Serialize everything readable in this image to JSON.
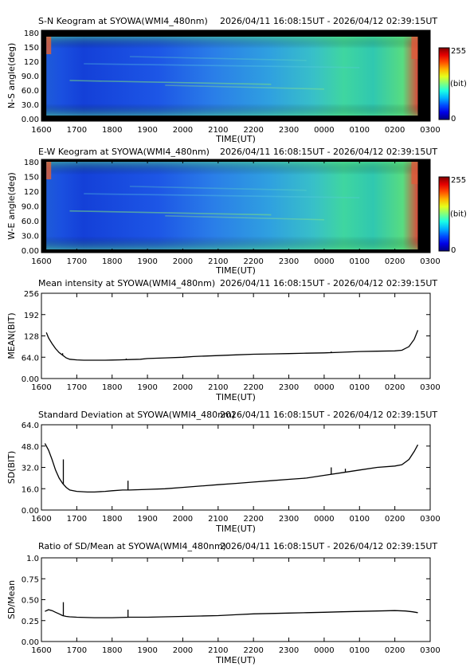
{
  "chart_data": [
    {
      "type": "heatmap",
      "title": "S-N Keogram at SYOWA(WMI4_480nm)",
      "time_range": "2026/04/11 16:08:15UT - 2026/04/12 02:39:15UT",
      "xlabel": "TIME(UT)",
      "ylabel": "N-S angle(deg)",
      "xlim": [
        16.0,
        27.0
      ],
      "ylim": [
        -5,
        185
      ],
      "x_ticks": [
        "1600",
        "1700",
        "1800",
        "1900",
        "2000",
        "2100",
        "2200",
        "2300",
        "0000",
        "0100",
        "0200",
        "0300"
      ],
      "y_ticks": [
        0.0,
        30.0,
        60.0,
        90.0,
        120,
        150,
        180
      ],
      "y_tick_labels": [
        "0.00",
        "30.0",
        "60.0",
        "90.0",
        "120",
        "150",
        "180"
      ],
      "colorbar": {
        "min": "0",
        "max": "255",
        "unit": "(bit)"
      }
    },
    {
      "type": "heatmap",
      "title": "E-W Keogram at SYOWA(WMI4_480nm)",
      "time_range": "2026/04/11 16:08:15UT - 2026/04/12 02:39:15UT",
      "xlabel": "TIME(UT)",
      "ylabel": "W-E angle(deg)",
      "xlim": [
        16.0,
        27.0
      ],
      "ylim": [
        -5,
        185
      ],
      "x_ticks": [
        "1600",
        "1700",
        "1800",
        "1900",
        "2000",
        "2100",
        "2200",
        "2300",
        "0000",
        "0100",
        "0200",
        "0300"
      ],
      "y_ticks": [
        0.0,
        30.0,
        60.0,
        90.0,
        120,
        150,
        180
      ],
      "y_tick_labels": [
        "0.00",
        "30.0",
        "60.0",
        "90.0",
        "120",
        "150",
        "180"
      ],
      "colorbar": {
        "min": "0",
        "max": "255",
        "unit": "(bit)"
      }
    },
    {
      "type": "line",
      "title": "Mean intensity at SYOWA(WMI4_480nm)",
      "time_range": "2026/04/11 16:08:15UT - 2026/04/12 02:39:15UT",
      "xlabel": "TIME(UT)",
      "ylabel": "MEAN(BIT)",
      "xlim": [
        16.0,
        27.0
      ],
      "ylim": [
        0,
        256
      ],
      "x_ticks": [
        "1600",
        "1700",
        "1800",
        "1900",
        "2000",
        "2100",
        "2200",
        "2300",
        "0000",
        "0100",
        "0200",
        "0300"
      ],
      "y_ticks": [
        0,
        64,
        128,
        192,
        256
      ],
      "y_tick_labels": [
        "0.00",
        "64.0",
        "128",
        "192",
        "256"
      ],
      "series": [
        {
          "x": [
            16.14,
            16.2,
            16.3,
            16.4,
            16.5,
            16.6,
            16.65,
            16.7,
            16.8,
            17.0,
            17.2,
            17.5,
            17.8,
            18.0,
            18.2,
            18.5,
            18.8,
            19.0,
            19.5,
            20.0,
            20.3,
            20.5,
            21.0,
            21.5,
            22.0,
            22.5,
            23.0,
            23.5,
            24.0,
            24.5,
            25.0,
            25.5,
            26.0,
            26.2,
            26.4,
            26.55,
            26.65
          ],
          "y": [
            138,
            122,
            105,
            90,
            78,
            70,
            66,
            62,
            58,
            56,
            55,
            55,
            55,
            55.5,
            56,
            57,
            58,
            60,
            62,
            64,
            66,
            67,
            69,
            71,
            73,
            74,
            75,
            76,
            77,
            79,
            81,
            82,
            83,
            85,
            96,
            118,
            145
          ]
        }
      ],
      "spikes": [
        [
          16.6,
          76
        ],
        [
          18.4,
          60
        ],
        [
          24.2,
          81
        ]
      ]
    },
    {
      "type": "line",
      "title": "Standard Deviation at SYOWA(WMI4_480nm)",
      "time_range": "2026/04/11 16:08:15UT - 2026/04/12 02:39:15UT",
      "xlabel": "TIME(UT)",
      "ylabel": "SD(BIT)",
      "xlim": [
        16.0,
        27.0
      ],
      "ylim": [
        0,
        64
      ],
      "x_ticks": [
        "1600",
        "1700",
        "1800",
        "1900",
        "2000",
        "2100",
        "2200",
        "2300",
        "0000",
        "0100",
        "0200",
        "0300"
      ],
      "y_ticks": [
        0,
        16,
        32,
        48,
        64
      ],
      "y_tick_labels": [
        "0.00",
        "16.0",
        "32.0",
        "48.0",
        "64.0"
      ],
      "series": [
        {
          "x": [
            16.1,
            16.2,
            16.3,
            16.4,
            16.5,
            16.6,
            16.7,
            16.8,
            17.0,
            17.3,
            17.5,
            17.8,
            18.0,
            18.3,
            18.5,
            19.0,
            19.5,
            20.0,
            20.5,
            21.0,
            21.5,
            22.0,
            22.5,
            23.0,
            23.5,
            24.0,
            24.5,
            25.0,
            25.5,
            26.0,
            26.2,
            26.4,
            26.55,
            26.65
          ],
          "y": [
            50,
            45,
            38,
            30,
            24,
            20,
            17,
            15,
            14,
            13.5,
            13.5,
            14,
            14.5,
            15,
            15,
            15.5,
            16,
            17,
            18,
            19,
            20,
            21,
            22,
            23,
            24,
            26,
            28,
            30,
            32,
            33,
            34,
            38,
            44,
            49
          ]
        }
      ],
      "spikes": [
        [
          16.62,
          38
        ],
        [
          18.45,
          22
        ],
        [
          24.2,
          32
        ],
        [
          24.6,
          31
        ]
      ]
    },
    {
      "type": "line",
      "title": "Ratio of SD/Mean at SYOWA(WMI4_480nm)",
      "time_range": "2026/04/11 16:08:15UT - 2026/04/12 02:39:15UT",
      "xlabel": "TIME(UT)",
      "ylabel": "SD/Mean",
      "xlim": [
        16.0,
        27.0
      ],
      "ylim": [
        0,
        1.0
      ],
      "x_ticks": [
        "1600",
        "1700",
        "1800",
        "1900",
        "2000",
        "2100",
        "2200",
        "2300",
        "0000",
        "0100",
        "0200",
        "0300"
      ],
      "y_ticks": [
        0,
        0.25,
        0.5,
        0.75,
        1.0
      ],
      "y_tick_labels": [
        "0.00",
        "0.25",
        "0.50",
        "0.75",
        "1.0"
      ],
      "series": [
        {
          "x": [
            16.1,
            16.2,
            16.3,
            16.4,
            16.5,
            16.6,
            16.7,
            16.8,
            17.0,
            17.5,
            18.0,
            18.5,
            19.0,
            19.5,
            20.0,
            20.5,
            21.0,
            21.5,
            22.0,
            22.5,
            23.0,
            23.5,
            24.0,
            24.5,
            25.0,
            25.5,
            26.0,
            26.3,
            26.5,
            26.65
          ],
          "y": [
            0.36,
            0.38,
            0.37,
            0.35,
            0.33,
            0.31,
            0.3,
            0.295,
            0.29,
            0.285,
            0.285,
            0.29,
            0.29,
            0.295,
            0.3,
            0.305,
            0.31,
            0.32,
            0.33,
            0.335,
            0.34,
            0.345,
            0.35,
            0.355,
            0.36,
            0.365,
            0.37,
            0.365,
            0.355,
            0.345
          ]
        }
      ],
      "spikes": [
        [
          16.62,
          0.47
        ],
        [
          18.45,
          0.38
        ]
      ]
    }
  ]
}
